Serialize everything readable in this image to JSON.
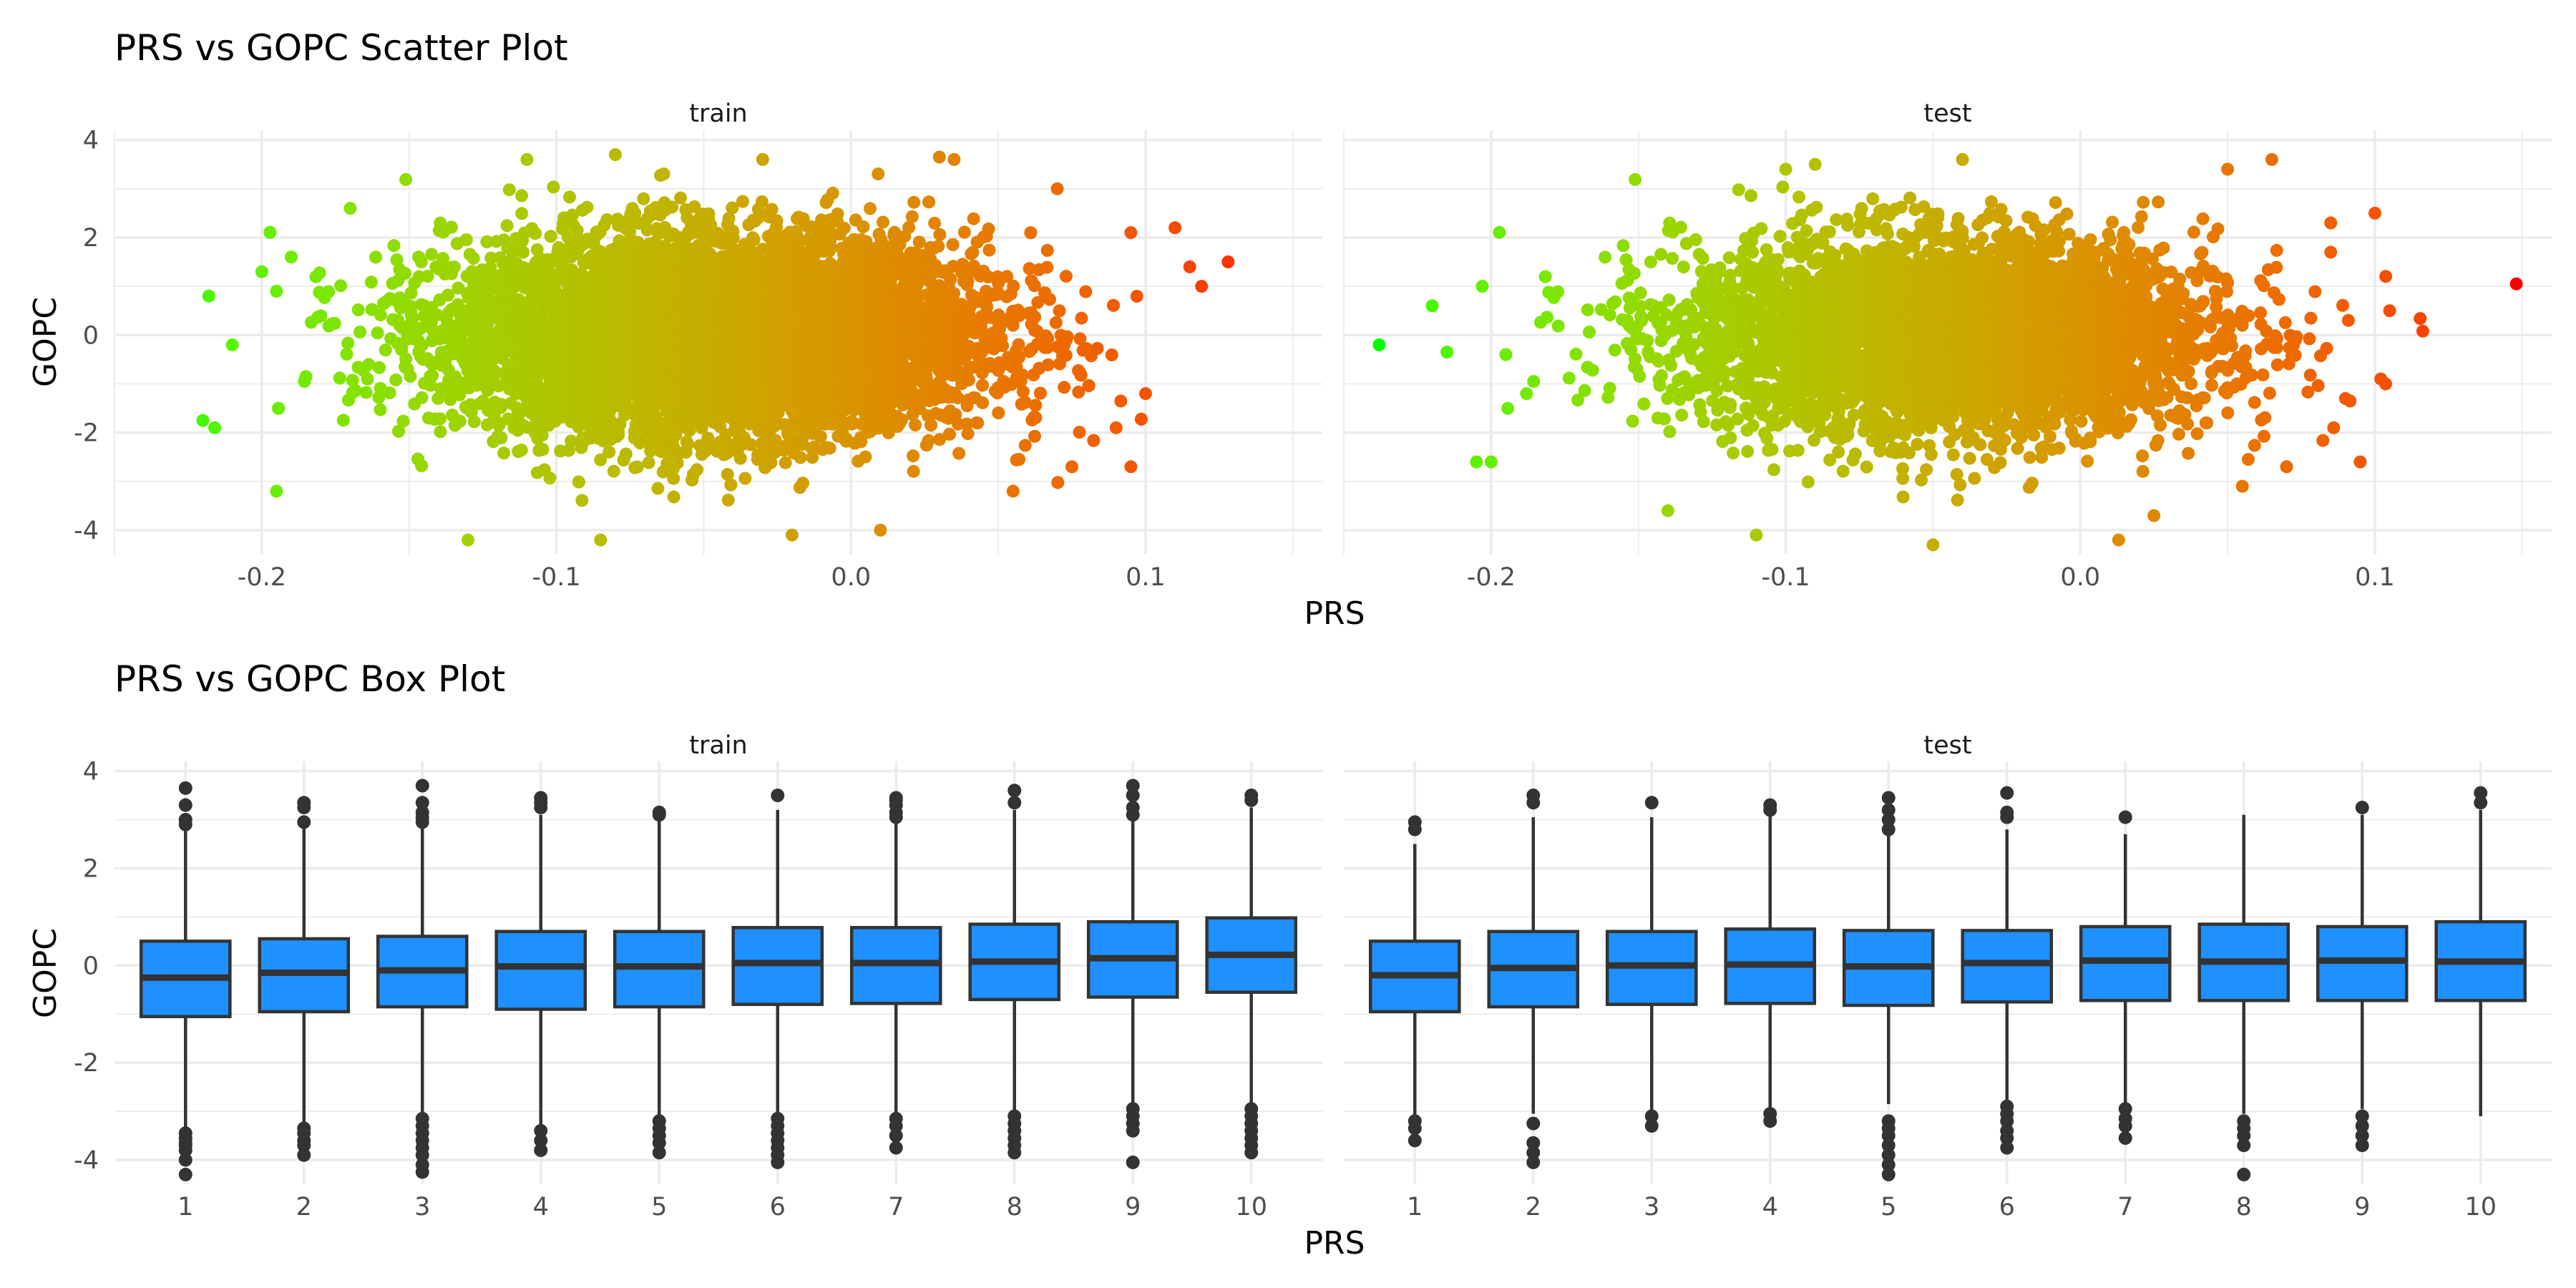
{
  "chart_data": [
    {
      "type": "scatter",
      "title": "PRS vs GOPC Scatter Plot",
      "xlabel": "PRS",
      "ylabel": "GOPC",
      "facets": [
        "train",
        "test"
      ],
      "xlim": [
        -0.25,
        0.16
      ],
      "ylim": [
        -4.5,
        4.2
      ],
      "xticks": [
        -0.2,
        -0.1,
        0.0,
        0.1
      ],
      "xtick_labels": [
        "-0.2",
        "-0.1",
        "0.0",
        "0.1"
      ],
      "yticks": [
        -4,
        -2,
        0,
        2,
        4
      ],
      "ytick_labels": [
        "-4",
        "-2",
        "0",
        "2",
        "4"
      ],
      "color_scale": {
        "variable": "PRS",
        "low": "#00ff00",
        "high": "#ff0000"
      },
      "grid": true,
      "legend": "none",
      "series": [
        {
          "facet": "train",
          "n_points": 9000,
          "x_mean": -0.045,
          "x_sd": 0.05,
          "y_mean": 0.0,
          "y_sd": 1.0,
          "x_range": [
            -0.22,
            0.13
          ],
          "y_range": [
            -4.3,
            3.7
          ],
          "points": [
            [
              -0.22,
              -1.75
            ],
            [
              -0.216,
              -1.9
            ],
            [
              -0.218,
              0.8
            ],
            [
              -0.195,
              -3.2
            ],
            [
              -0.21,
              -0.2
            ],
            [
              -0.2,
              1.3
            ],
            [
              -0.19,
              1.6
            ],
            [
              -0.195,
              0.9
            ],
            [
              -0.185,
              -0.85
            ],
            [
              -0.17,
              2.6
            ],
            [
              -0.13,
              -4.2
            ],
            [
              -0.11,
              3.6
            ],
            [
              -0.08,
              3.7
            ],
            [
              -0.085,
              -4.2
            ],
            [
              -0.03,
              3.6
            ],
            [
              -0.02,
              -4.1
            ],
            [
              0.03,
              3.65
            ],
            [
              0.035,
              3.6
            ],
            [
              0.01,
              -4.0
            ],
            [
              0.07,
              3.0
            ],
            [
              0.095,
              2.1
            ],
            [
              0.11,
              2.2
            ],
            [
              0.115,
              1.4
            ],
            [
              0.128,
              1.5
            ],
            [
              0.119,
              1.0
            ],
            [
              0.1,
              -1.2
            ],
            [
              0.09,
              -1.9
            ],
            [
              0.095,
              -2.7
            ],
            [
              0.075,
              -2.7
            ],
            [
              0.055,
              -3.2
            ]
          ]
        },
        {
          "facet": "test",
          "n_points": 4500,
          "x_mean": -0.045,
          "x_sd": 0.05,
          "y_mean": 0.0,
          "y_sd": 1.0,
          "x_range": [
            -0.24,
            0.148
          ],
          "y_range": [
            -4.3,
            3.6
          ],
          "points": [
            [
              -0.238,
              -0.2
            ],
            [
              -0.22,
              0.6
            ],
            [
              -0.215,
              -0.35
            ],
            [
              -0.205,
              -2.6
            ],
            [
              -0.2,
              -2.6
            ],
            [
              -0.203,
              1.0
            ],
            [
              -0.195,
              -0.4
            ],
            [
              -0.188,
              -1.2
            ],
            [
              -0.14,
              -3.6
            ],
            [
              -0.11,
              -4.1
            ],
            [
              -0.1,
              3.4
            ],
            [
              -0.09,
              3.5
            ],
            [
              -0.05,
              -4.3
            ],
            [
              -0.04,
              3.6
            ],
            [
              0.013,
              -4.2
            ],
            [
              0.025,
              -3.7
            ],
            [
              0.05,
              3.4
            ],
            [
              0.065,
              3.6
            ],
            [
              0.055,
              -3.1
            ],
            [
              0.07,
              -2.7
            ],
            [
              0.085,
              2.3
            ],
            [
              0.09,
              -1.3
            ],
            [
              0.095,
              -2.6
            ],
            [
              0.1,
              2.5
            ],
            [
              0.105,
              0.5
            ],
            [
              0.102,
              -0.9
            ],
            [
              0.148,
              1.05
            ],
            [
              0.085,
              1.7
            ],
            [
              0.091,
              0.3
            ],
            [
              0.086,
              -1.9
            ]
          ]
        }
      ]
    },
    {
      "type": "box",
      "title": "PRS vs GOPC Box Plot",
      "xlabel": "PRS",
      "ylabel": "GOPC",
      "facets": [
        "train",
        "test"
      ],
      "categories": [
        "1",
        "2",
        "3",
        "4",
        "5",
        "6",
        "7",
        "8",
        "9",
        "10"
      ],
      "ylim": [
        -4.5,
        4.2
      ],
      "yticks": [
        -4,
        -2,
        0,
        2,
        4
      ],
      "ytick_labels": [
        "-4",
        "-2",
        "0",
        "2",
        "4"
      ],
      "fill": "#1e90ff",
      "grid": true,
      "series": [
        {
          "facet": "train",
          "boxes": [
            {
              "q1": -1.05,
              "median": -0.25,
              "q3": 0.5,
              "whisker_low": -3.35,
              "whisker_high": 2.8,
              "outliers": [
                -3.45,
                -3.55,
                -3.65,
                -3.7,
                -3.8,
                -4.0,
                -4.3,
                2.9,
                3.0,
                3.3,
                3.65
              ]
            },
            {
              "q1": -0.95,
              "median": -0.15,
              "q3": 0.55,
              "whisker_low": -3.25,
              "whisker_high": 2.85,
              "outliers": [
                -3.35,
                -3.45,
                -3.6,
                -3.7,
                -3.9,
                2.95,
                3.25,
                3.35
              ]
            },
            {
              "q1": -0.85,
              "median": -0.1,
              "q3": 0.6,
              "whisker_low": -3.1,
              "whisker_high": 2.85,
              "outliers": [
                -3.15,
                -3.3,
                -3.45,
                -3.6,
                -3.75,
                -3.9,
                -4.1,
                -4.25,
                2.95,
                3.05,
                3.15,
                3.35,
                3.7
              ]
            },
            {
              "q1": -0.9,
              "median": -0.02,
              "q3": 0.7,
              "whisker_low": -3.3,
              "whisker_high": 3.1,
              "outliers": [
                -3.4,
                -3.6,
                -3.8,
                3.25,
                3.35,
                3.45
              ]
            },
            {
              "q1": -0.85,
              "median": -0.02,
              "q3": 0.7,
              "whisker_low": -3.15,
              "whisker_high": 3.05,
              "outliers": [
                -3.2,
                -3.35,
                -3.5,
                -3.65,
                -3.85,
                3.1,
                3.15
              ]
            },
            {
              "q1": -0.8,
              "median": 0.05,
              "q3": 0.78,
              "whisker_low": -3.1,
              "whisker_high": 3.2,
              "outliers": [
                -3.15,
                -3.3,
                -3.45,
                -3.6,
                -3.75,
                -3.9,
                -4.05,
                3.5
              ]
            },
            {
              "q1": -0.78,
              "median": 0.05,
              "q3": 0.78,
              "whisker_low": -3.1,
              "whisker_high": 2.95,
              "outliers": [
                -3.15,
                -3.3,
                -3.5,
                -3.75,
                3.05,
                3.15,
                3.3,
                3.4,
                3.45
              ]
            },
            {
              "q1": -0.7,
              "median": 0.08,
              "q3": 0.85,
              "whisker_low": -3.05,
              "whisker_high": 3.2,
              "outliers": [
                -3.1,
                -3.25,
                -3.4,
                -3.55,
                -3.7,
                -3.85,
                3.35,
                3.6
              ]
            },
            {
              "q1": -0.65,
              "median": 0.15,
              "q3": 0.9,
              "whisker_low": -2.85,
              "whisker_high": 3.0,
              "outliers": [
                -2.95,
                -3.1,
                -3.25,
                -3.4,
                -4.05,
                3.1,
                3.25,
                3.5,
                3.7
              ]
            },
            {
              "q1": -0.55,
              "median": 0.22,
              "q3": 0.98,
              "whisker_low": -2.85,
              "whisker_high": 3.25,
              "outliers": [
                -2.95,
                -3.1,
                -3.25,
                -3.4,
                -3.55,
                -3.7,
                -3.85,
                3.4,
                3.5
              ]
            }
          ]
        },
        {
          "facet": "test",
          "boxes": [
            {
              "q1": -0.95,
              "median": -0.2,
              "q3": 0.5,
              "whisker_low": -3.1,
              "whisker_high": 2.5,
              "outliers": [
                -3.2,
                -3.35,
                -3.6,
                2.8,
                2.95
              ]
            },
            {
              "q1": -0.85,
              "median": -0.05,
              "q3": 0.7,
              "whisker_low": -3.05,
              "whisker_high": 3.05,
              "outliers": [
                -3.25,
                -3.65,
                -3.85,
                -4.05,
                3.35,
                3.5
              ]
            },
            {
              "q1": -0.8,
              "median": 0.0,
              "q3": 0.7,
              "whisker_low": -3.0,
              "whisker_high": 3.05,
              "outliers": [
                -3.1,
                -3.3,
                3.35
              ]
            },
            {
              "q1": -0.78,
              "median": 0.02,
              "q3": 0.75,
              "whisker_low": -2.95,
              "whisker_high": 3.1,
              "outliers": [
                -3.05,
                -3.2,
                3.2,
                3.3
              ]
            },
            {
              "q1": -0.82,
              "median": -0.02,
              "q3": 0.72,
              "whisker_low": -2.85,
              "whisker_high": 2.7,
              "outliers": [
                -3.2,
                -3.35,
                -3.5,
                -3.7,
                -3.9,
                -4.1,
                -4.3,
                2.8,
                3.0,
                3.2,
                3.45
              ]
            },
            {
              "q1": -0.75,
              "median": 0.05,
              "q3": 0.72,
              "whisker_low": -2.8,
              "whisker_high": 2.8,
              "outliers": [
                -2.9,
                -3.05,
                -3.2,
                -3.4,
                -3.55,
                -3.75,
                3.05,
                3.15,
                3.55
              ]
            },
            {
              "q1": -0.72,
              "median": 0.1,
              "q3": 0.8,
              "whisker_low": -2.85,
              "whisker_high": 2.7,
              "outliers": [
                -2.95,
                -3.15,
                -3.3,
                -3.55,
                3.05
              ]
            },
            {
              "q1": -0.72,
              "median": 0.08,
              "q3": 0.85,
              "whisker_low": -3.05,
              "whisker_high": 3.1,
              "outliers": [
                -3.2,
                -3.35,
                -3.5,
                -3.7,
                -4.3
              ]
            },
            {
              "q1": -0.72,
              "median": 0.1,
              "q3": 0.8,
              "whisker_low": -2.95,
              "whisker_high": 3.1,
              "outliers": [
                -3.1,
                -3.3,
                -3.5,
                -3.7,
                3.25
              ]
            },
            {
              "q1": -0.72,
              "median": 0.08,
              "q3": 0.9,
              "whisker_low": -3.1,
              "whisker_high": 3.2,
              "outliers": [
                3.35,
                3.55
              ]
            }
          ]
        }
      ]
    }
  ]
}
